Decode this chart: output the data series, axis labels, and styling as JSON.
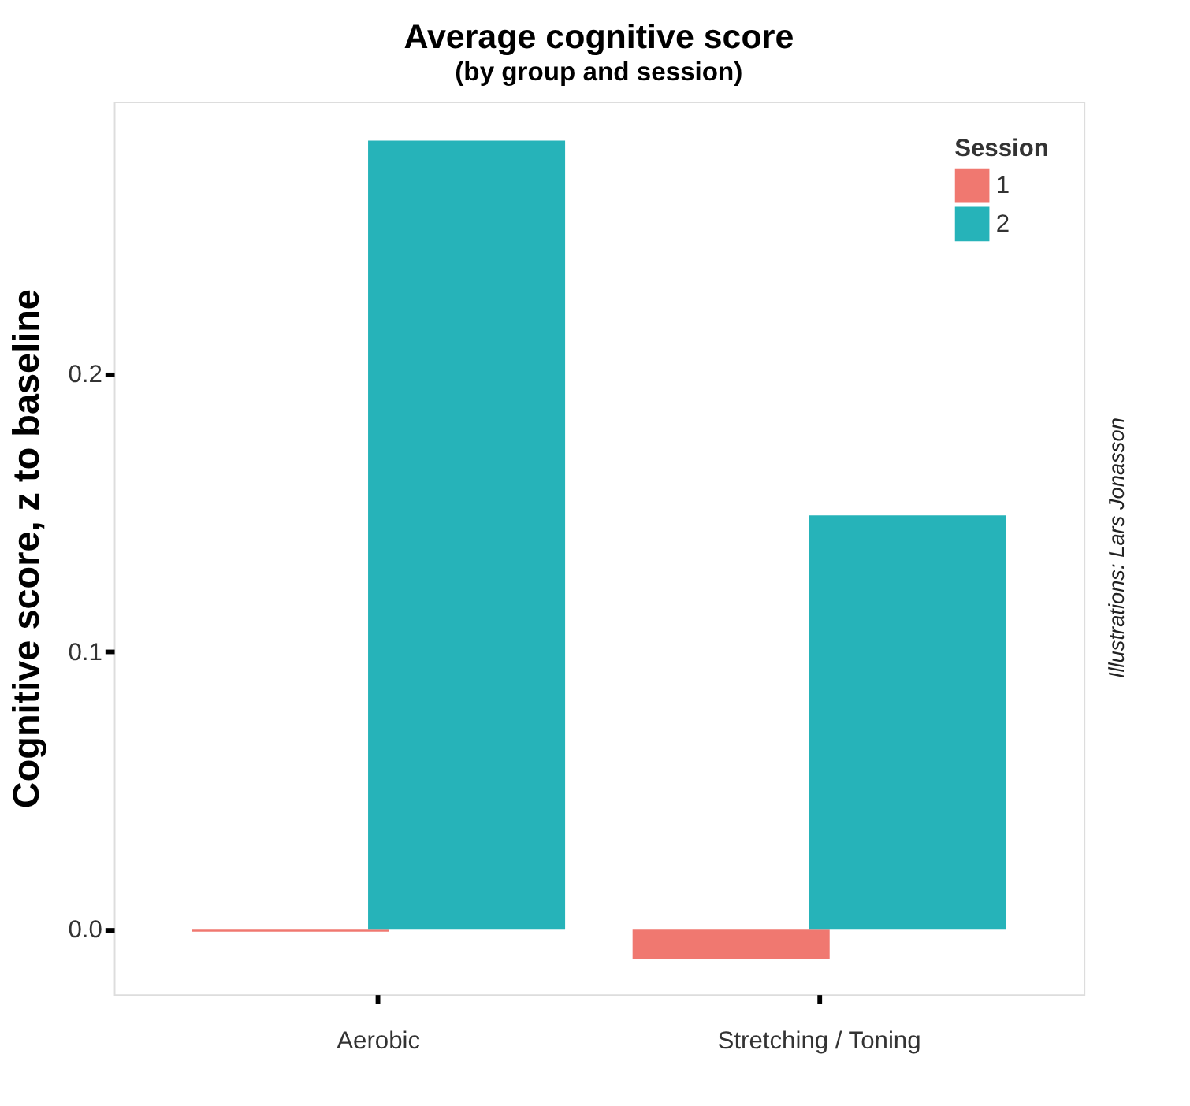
{
  "chart_data": {
    "type": "bar",
    "title": "Average cognitive score",
    "subtitle": "(by group and session)",
    "ylabel": "Cognitive score, z to baseline",
    "legend_title": "Session",
    "categories": [
      "Aerobic",
      "Stretching / Toning"
    ],
    "series": [
      {
        "name": "1",
        "color": "#f07870",
        "values": [
          -0.001,
          -0.011
        ]
      },
      {
        "name": "2",
        "color": "#26b3b9",
        "values": [
          0.284,
          0.149
        ]
      }
    ],
    "ylim": [
      -0.0235,
      0.298
    ],
    "yticks": [
      {
        "value": 0,
        "label": "0.0"
      },
      0.1,
      0.2
    ],
    "grid": false,
    "legend": "top right",
    "annotations": [
      "Illustrations: Lars Jonasson"
    ]
  }
}
